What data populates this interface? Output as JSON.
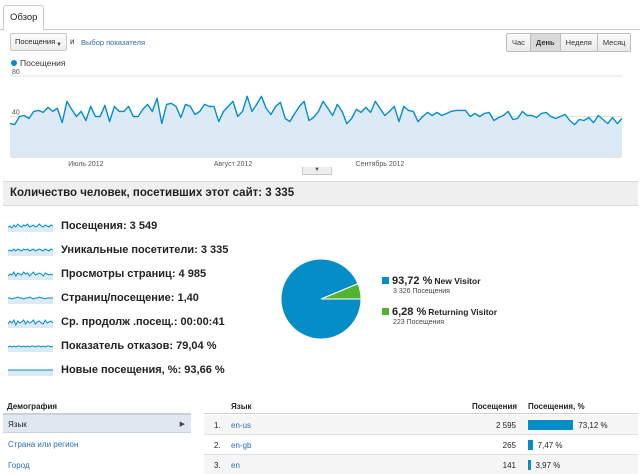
{
  "tabs": [
    {
      "label": "Обзор"
    }
  ],
  "controls": {
    "metric_select": "Посещения",
    "and_text": "и",
    "choose_metric": "Выбор показателя",
    "periods": [
      "Час",
      "День",
      "Неделя",
      "Месяц"
    ],
    "active_period": "День"
  },
  "chart_data": {
    "type": "area",
    "title": "",
    "xlabel": "",
    "ylabel": "",
    "series": [
      {
        "name": "Посещения",
        "values": [
          33,
          32,
          40,
          41,
          38,
          45,
          46,
          44,
          49,
          45,
          48,
          34,
          55,
          47,
          40,
          45,
          36,
          50,
          40,
          40,
          51,
          35,
          50,
          45,
          45,
          50,
          40,
          40,
          47,
          52,
          45,
          58,
          33,
          52,
          53,
          50,
          39,
          52,
          50,
          42,
          45,
          52,
          50,
          50,
          35,
          45,
          50,
          55,
          40,
          45,
          60,
          45,
          52,
          60,
          48,
          42,
          50,
          54,
          38,
          35,
          43,
          50,
          55,
          36,
          39,
          45,
          55,
          48,
          41,
          52,
          45,
          33,
          38,
          47,
          44,
          49,
          44,
          55,
          48,
          41,
          45,
          50,
          35,
          50,
          46,
          45,
          35,
          40,
          44,
          41,
          44,
          41,
          43,
          45,
          46,
          46,
          46,
          40,
          43,
          40,
          43,
          44,
          36,
          39,
          41,
          45,
          37,
          38,
          45,
          41,
          41,
          39,
          43,
          44,
          40,
          38,
          40,
          42,
          36,
          32,
          37,
          36,
          39,
          34,
          41,
          37,
          33,
          39,
          33,
          38
        ]
      }
    ],
    "x_tick_labels": [
      "Июль 2012",
      "Август 2012",
      "Сентябрь 2012"
    ],
    "y_tick_labels": [
      "80",
      "40"
    ],
    "ylim": [
      0,
      80
    ],
    "color": "#058dc7",
    "fill": "#dbeaf4",
    "grid": true,
    "legend_placement": "top-left"
  },
  "summary": {
    "title": "Количество человек, посетивших этот сайт: 3 335",
    "metrics": [
      {
        "text": "Посещения: 3 549",
        "spark": [
          5,
          6,
          4,
          7,
          5,
          8,
          6,
          5,
          7,
          6,
          8,
          5,
          6,
          7,
          5,
          6,
          8,
          6,
          5,
          7,
          6,
          5,
          7,
          6
        ]
      },
      {
        "text": "Уникальные посетители: 3 335",
        "spark": [
          5,
          6,
          5,
          7,
          5,
          7,
          6,
          5,
          7,
          6,
          7,
          5,
          6,
          7,
          5,
          6,
          7,
          6,
          5,
          7,
          6,
          5,
          7,
          6
        ]
      },
      {
        "text": "Просмотры страниц: 4 985",
        "spark": [
          4,
          6,
          5,
          8,
          4,
          7,
          6,
          5,
          8,
          6,
          7,
          4,
          6,
          8,
          5,
          6,
          7,
          6,
          4,
          7,
          6,
          5,
          6,
          5
        ]
      },
      {
        "text": "Страниц/посещение: 1,40",
        "spark": [
          6,
          6,
          5,
          6,
          6,
          7,
          6,
          6,
          5,
          6,
          6,
          7,
          6,
          5,
          6,
          6,
          7,
          6,
          6,
          5,
          6,
          6,
          6,
          6
        ]
      },
      {
        "text": "Ср. продолж .посещ.: 00:00:41",
        "spark": [
          4,
          7,
          5,
          8,
          3,
          7,
          5,
          6,
          8,
          4,
          7,
          5,
          6,
          8,
          4,
          6,
          7,
          5,
          4,
          8,
          5,
          6,
          7,
          5
        ]
      },
      {
        "text": "Показатель отказов: 79,04 %",
        "spark": [
          5,
          6,
          5,
          6,
          5,
          6,
          6,
          5,
          6,
          5,
          6,
          5,
          6,
          6,
          5,
          6,
          6,
          5,
          6,
          5,
          6,
          6,
          5,
          6
        ]
      },
      {
        "text": "Новые посещения, %: 93,66 %",
        "spark": [
          6,
          6,
          6,
          6,
          6,
          6,
          6,
          6,
          6,
          6,
          6,
          6,
          6,
          6,
          6,
          6,
          6,
          6,
          6,
          6,
          6,
          6,
          6,
          6
        ]
      }
    ]
  },
  "pie": {
    "slices": [
      {
        "pct": "93,72 %",
        "label": "New Visitor",
        "sub": "3 326 Посещения",
        "value": 93.72,
        "color": "#058dc7"
      },
      {
        "pct": "6,28 %",
        "label": "Returning Visitor",
        "sub": "223 Посещения",
        "value": 6.28,
        "color": "#50b432"
      }
    ]
  },
  "demographics": {
    "header": "Демография",
    "items": [
      "Язык",
      "Страна или регион",
      "Город"
    ]
  },
  "table": {
    "headers": {
      "lang": "Язык",
      "visits": "Посещения",
      "pct": "Посещения, %"
    },
    "rows": [
      {
        "num": "1.",
        "lang": "en-us",
        "visits": "2 595",
        "pct": "73,12 %",
        "value": 73.12
      },
      {
        "num": "2.",
        "lang": "en-gb",
        "visits": "265",
        "pct": "7,47 %",
        "value": 7.47
      },
      {
        "num": "3.",
        "lang": "en",
        "visits": "141",
        "pct": "3,97 %",
        "value": 3.97
      }
    ]
  }
}
